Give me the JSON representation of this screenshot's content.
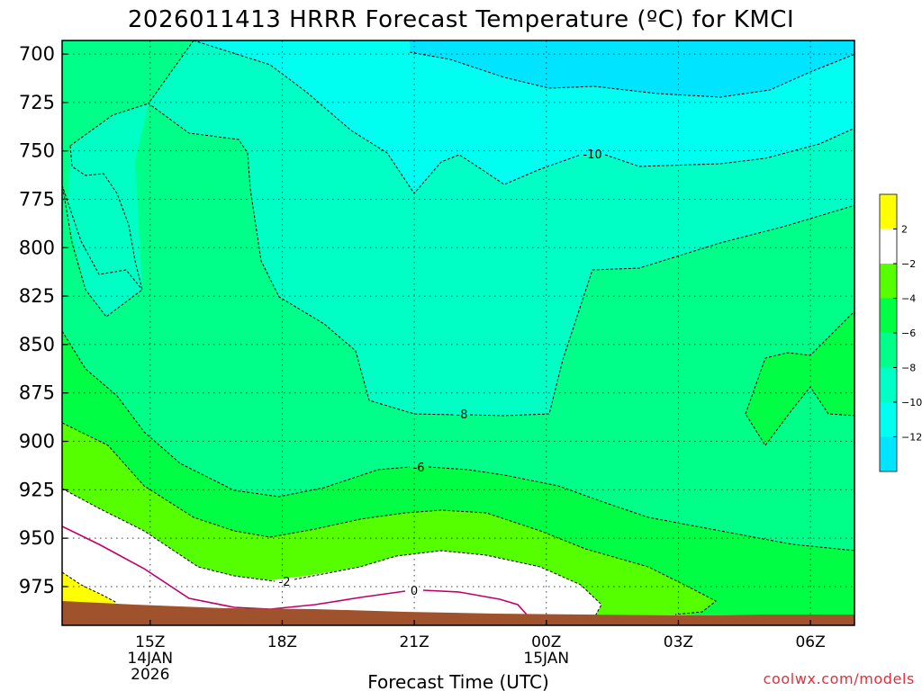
{
  "chart_data": {
    "type": "heatmap",
    "title": "2026011413 HRRR Forecast Temperature (ºC) for KMCI",
    "xlabel": "Forecast Time (UTC)",
    "ylabel": "",
    "x_ticks": [
      {
        "label": "15Z",
        "sub": [
          "14JAN",
          "2026"
        ],
        "hours": 2
      },
      {
        "label": "18Z",
        "sub": [],
        "hours": 5
      },
      {
        "label": "21Z",
        "sub": [],
        "hours": 8
      },
      {
        "label": "00Z",
        "sub": [
          "15JAN"
        ],
        "hours": 11
      },
      {
        "label": "03Z",
        "sub": [],
        "hours": 14
      },
      {
        "label": "06Z",
        "sub": [],
        "hours": 17
      }
    ],
    "xlim": [
      0,
      18
    ],
    "y_ticks": [
      "700",
      "725",
      "750",
      "775",
      "800",
      "825",
      "850",
      "875",
      "900",
      "925",
      "950",
      "975"
    ],
    "ylim_hPa": [
      693,
      995
    ],
    "grid": true,
    "legend_placement": "right",
    "colorbar_labels": [
      "2",
      "−2",
      "−4",
      "−6",
      "−8",
      "−10",
      "−12"
    ],
    "color_levels": [
      {
        "range": "> 2",
        "color": "#ffff00"
      },
      {
        "range": "-2 to 2",
        "color": "#ffffff"
      },
      {
        "range": "-4 to -2",
        "color": "#55ff00"
      },
      {
        "range": "-6 to -4",
        "color": "#00ff44"
      },
      {
        "range": "-8 to -6",
        "color": "#00ff88"
      },
      {
        "range": "-10 to -8",
        "color": "#00ffc4"
      },
      {
        "range": "-12 to -10",
        "color": "#00fff0"
      },
      {
        "range": "< -12",
        "color": "#00e4ff"
      }
    ],
    "contour_labels": [
      "-10",
      "-8",
      "-6",
      "-2",
      "0"
    ],
    "terrain_color": "#a0522d",
    "contour_color": "#c0006a"
  },
  "credit": "coolwx.com/models"
}
